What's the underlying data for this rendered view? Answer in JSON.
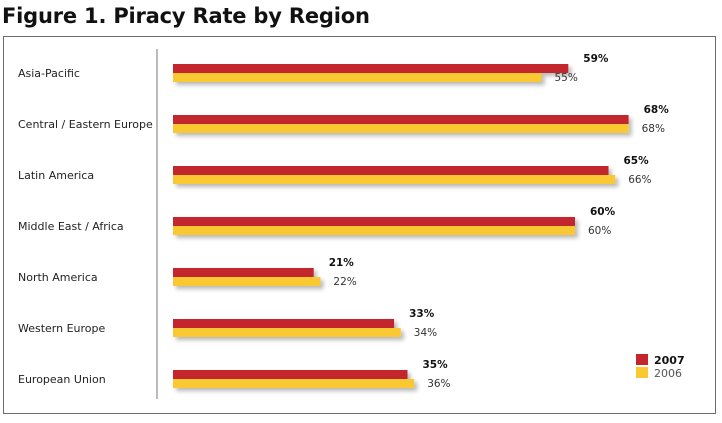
{
  "chart_data": {
    "type": "bar",
    "orientation": "horizontal",
    "title": "Figure 1. Piracy Rate by Region",
    "categories": [
      "Asia-Pacific",
      "Central / Eastern Europe",
      "Latin America",
      "Middle East / Africa",
      "North America",
      "Western Europe",
      "European Union"
    ],
    "series": [
      {
        "name": "2007",
        "color": "#c4262e",
        "values": [
          59,
          68,
          65,
          60,
          21,
          33,
          35
        ]
      },
      {
        "name": "2006",
        "color": "#fac832",
        "values": [
          55,
          68,
          66,
          60,
          22,
          34,
          36
        ]
      }
    ],
    "value_suffix": "%",
    "xlim": [
      0,
      100
    ],
    "grid": false,
    "legend": "bottom-right"
  }
}
